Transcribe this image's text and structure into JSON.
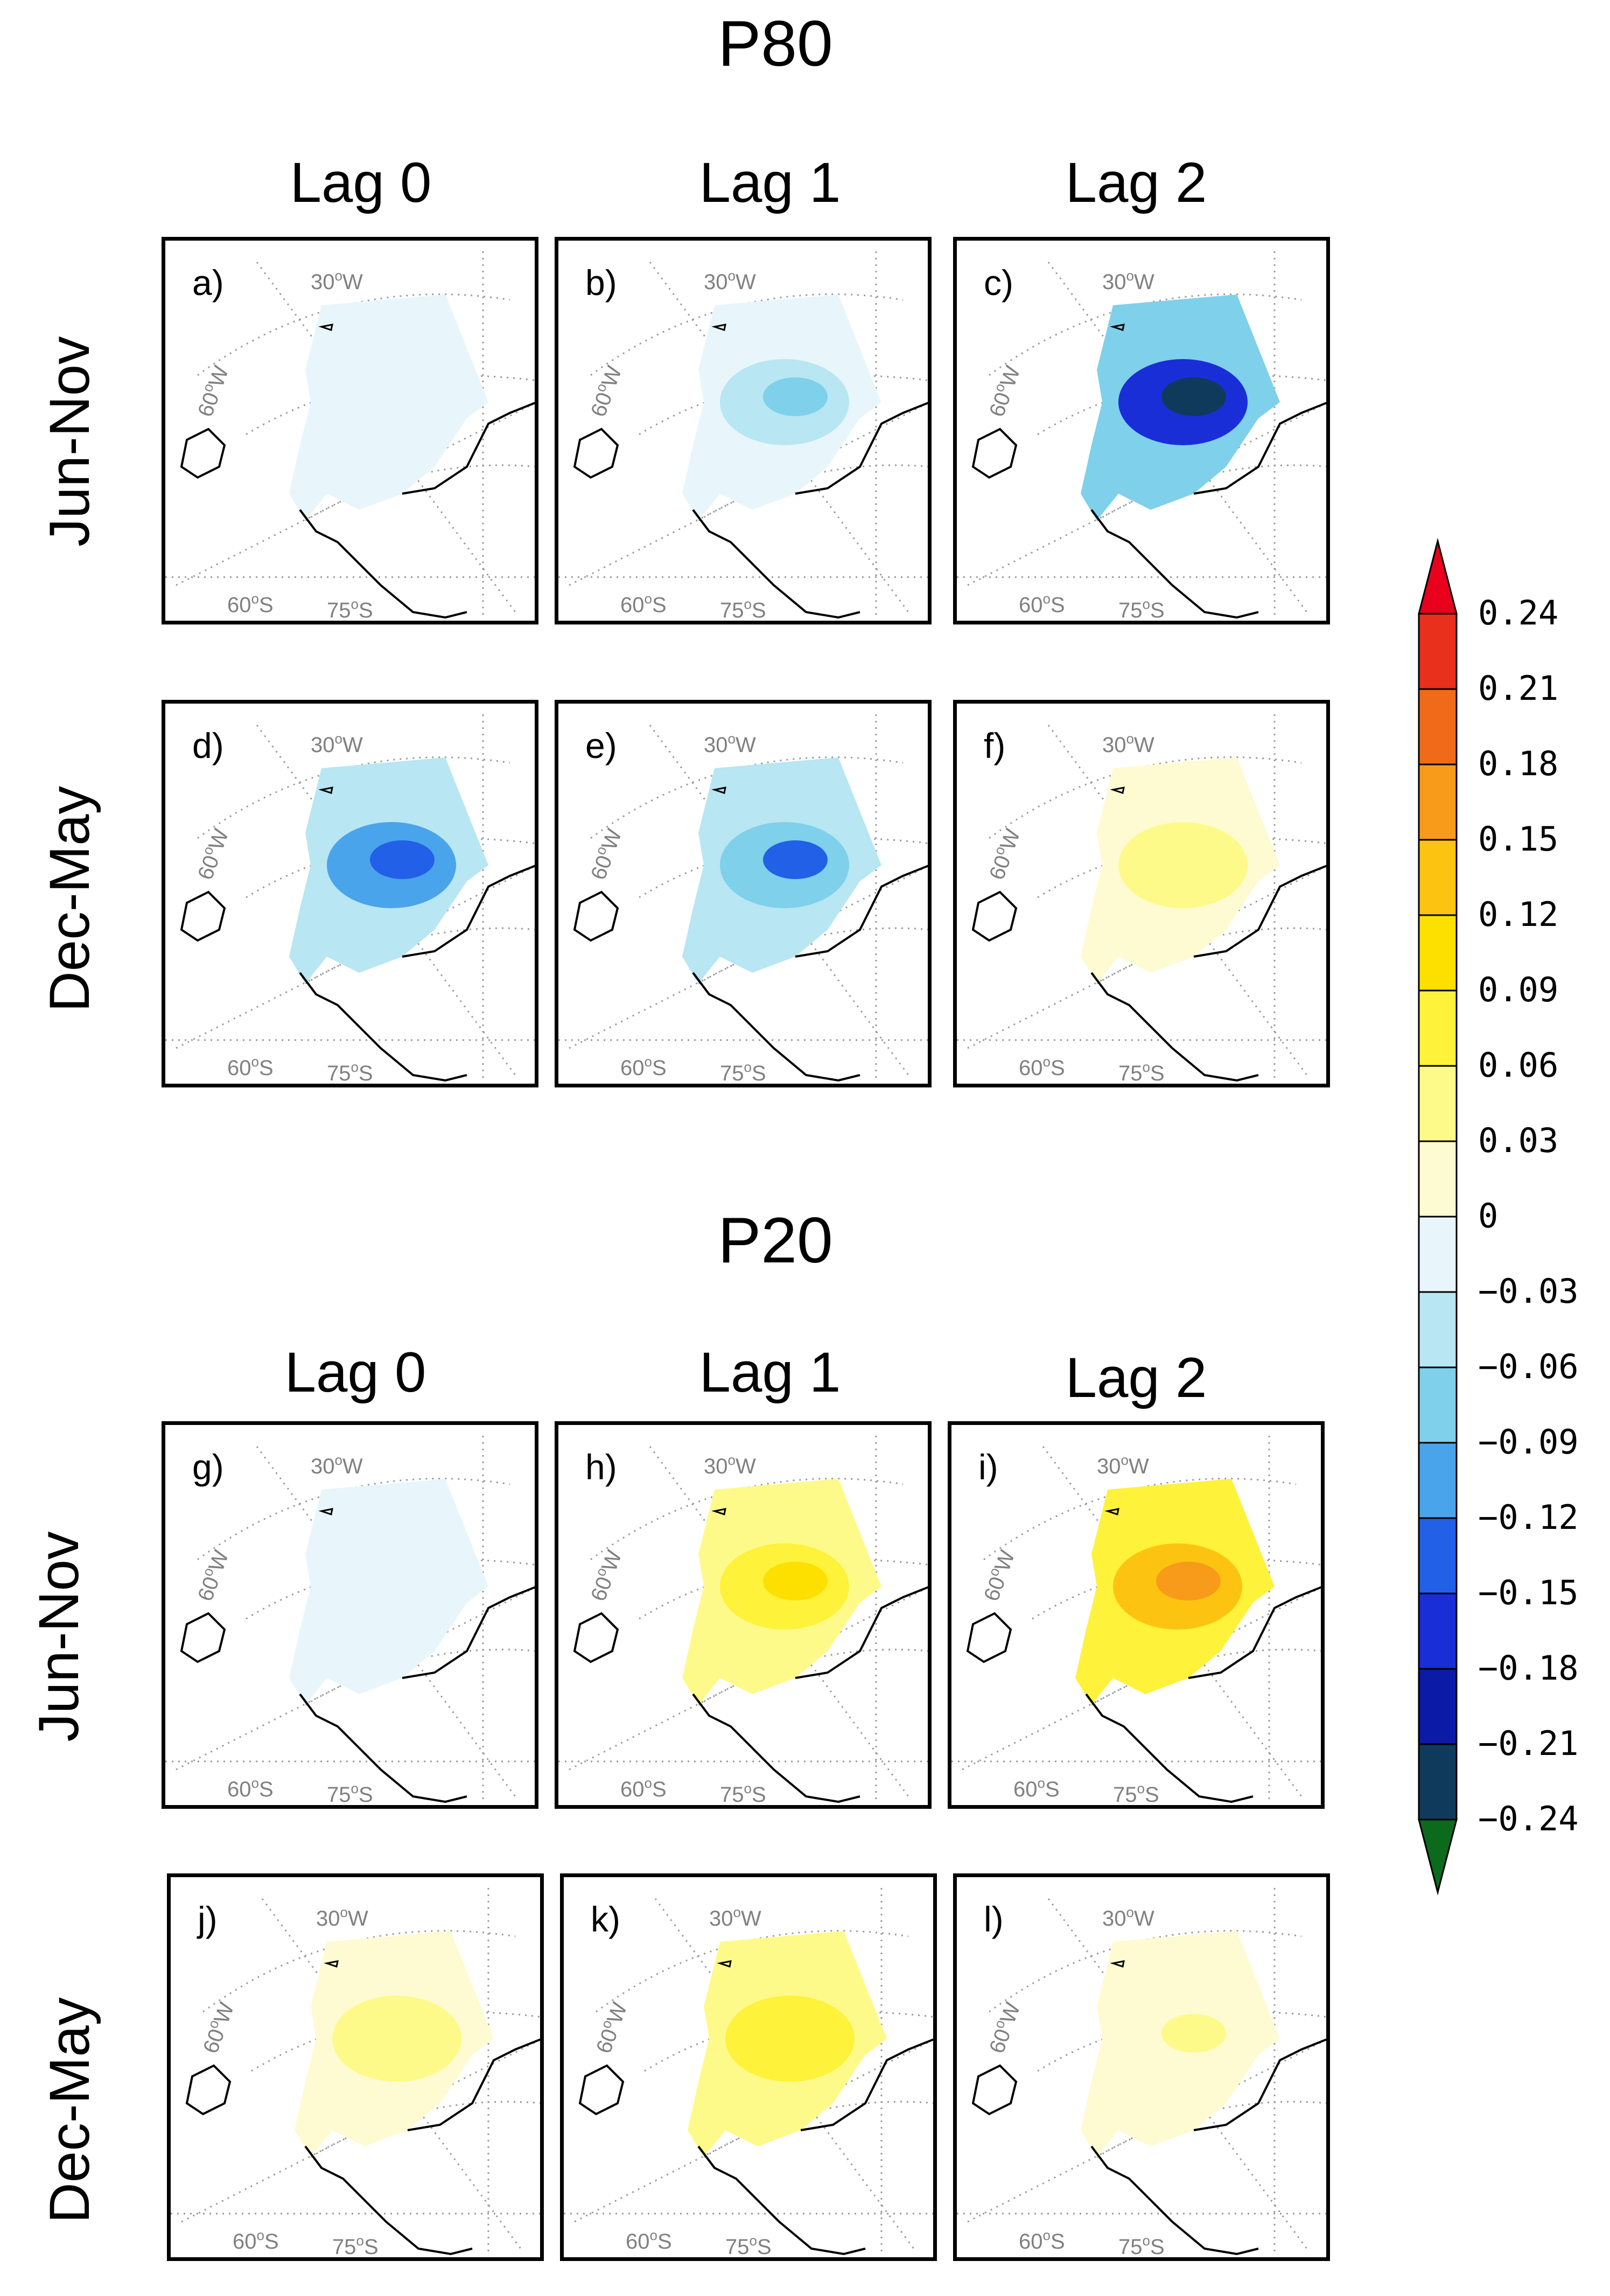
{
  "sections": [
    {
      "title": "P80",
      "lags": [
        "Lag 0",
        "Lag 1",
        "Lag 2"
      ],
      "rows": [
        "Jun-Nov",
        "Dec-May"
      ],
      "panels": [
        {
          "letter": "a)",
          "season": "Jun-Nov",
          "lag": 0,
          "anomaly": -0.02
        },
        {
          "letter": "b)",
          "season": "Jun-Nov",
          "lag": 1,
          "anomaly": -0.06
        },
        {
          "letter": "c)",
          "season": "Jun-Nov",
          "lag": 2,
          "anomaly": -0.22
        },
        {
          "letter": "d)",
          "season": "Dec-May",
          "lag": 0,
          "anomaly": -0.14
        },
        {
          "letter": "e)",
          "season": "Dec-May",
          "lag": 1,
          "anomaly": -0.12
        },
        {
          "letter": "f)",
          "season": "Dec-May",
          "lag": 2,
          "anomaly": 0.06
        }
      ]
    },
    {
      "title": "P20",
      "lags": [
        "Lag 0",
        "Lag 1",
        "Lag 2"
      ],
      "rows": [
        "Jun-Nov",
        "Dec-May"
      ],
      "panels": [
        {
          "letter": "g)",
          "season": "Jun-Nov",
          "lag": 0,
          "anomaly": -0.02
        },
        {
          "letter": "h)",
          "season": "Jun-Nov",
          "lag": 1,
          "anomaly": 0.12
        },
        {
          "letter": "i)",
          "season": "Jun-Nov",
          "lag": 2,
          "anomaly": 0.18
        },
        {
          "letter": "j)",
          "season": "Dec-May",
          "lag": 0,
          "anomaly": 0.06
        },
        {
          "letter": "k)",
          "season": "Dec-May",
          "lag": 1,
          "anomaly": 0.09
        },
        {
          "letter": "l)",
          "season": "Dec-May",
          "lag": 2,
          "anomaly": 0.04
        }
      ]
    }
  ],
  "map_labels": {
    "lon_30": "30",
    "lon_60": "60",
    "lat_60": "60",
    "lat_75": "75",
    "deg": "o",
    "w": "W",
    "s": "S"
  },
  "colorbar": {
    "ticks": [
      "0.24",
      "0.21",
      "0.18",
      "0.15",
      "0.12",
      "0.09",
      "0.06",
      "0.03",
      "0",
      "-0.03",
      "-0.06",
      "-0.09",
      "-0.12",
      "-0.15",
      "-0.18",
      "-0.21",
      "-0.24"
    ],
    "colors": [
      "#e8301c",
      "#f06a1a",
      "#f89a1a",
      "#fcc410",
      "#fde000",
      "#fef23a",
      "#fefa8a",
      "#fefbd2",
      "#e8f6fb",
      "#b8e6f2",
      "#7fd0ea",
      "#4aa4ec",
      "#2260e8",
      "#1a2ed8",
      "#0c1aa8",
      "#103a5c"
    ],
    "over_color": "#e8001c",
    "under_color": "#0c6a1c"
  }
}
